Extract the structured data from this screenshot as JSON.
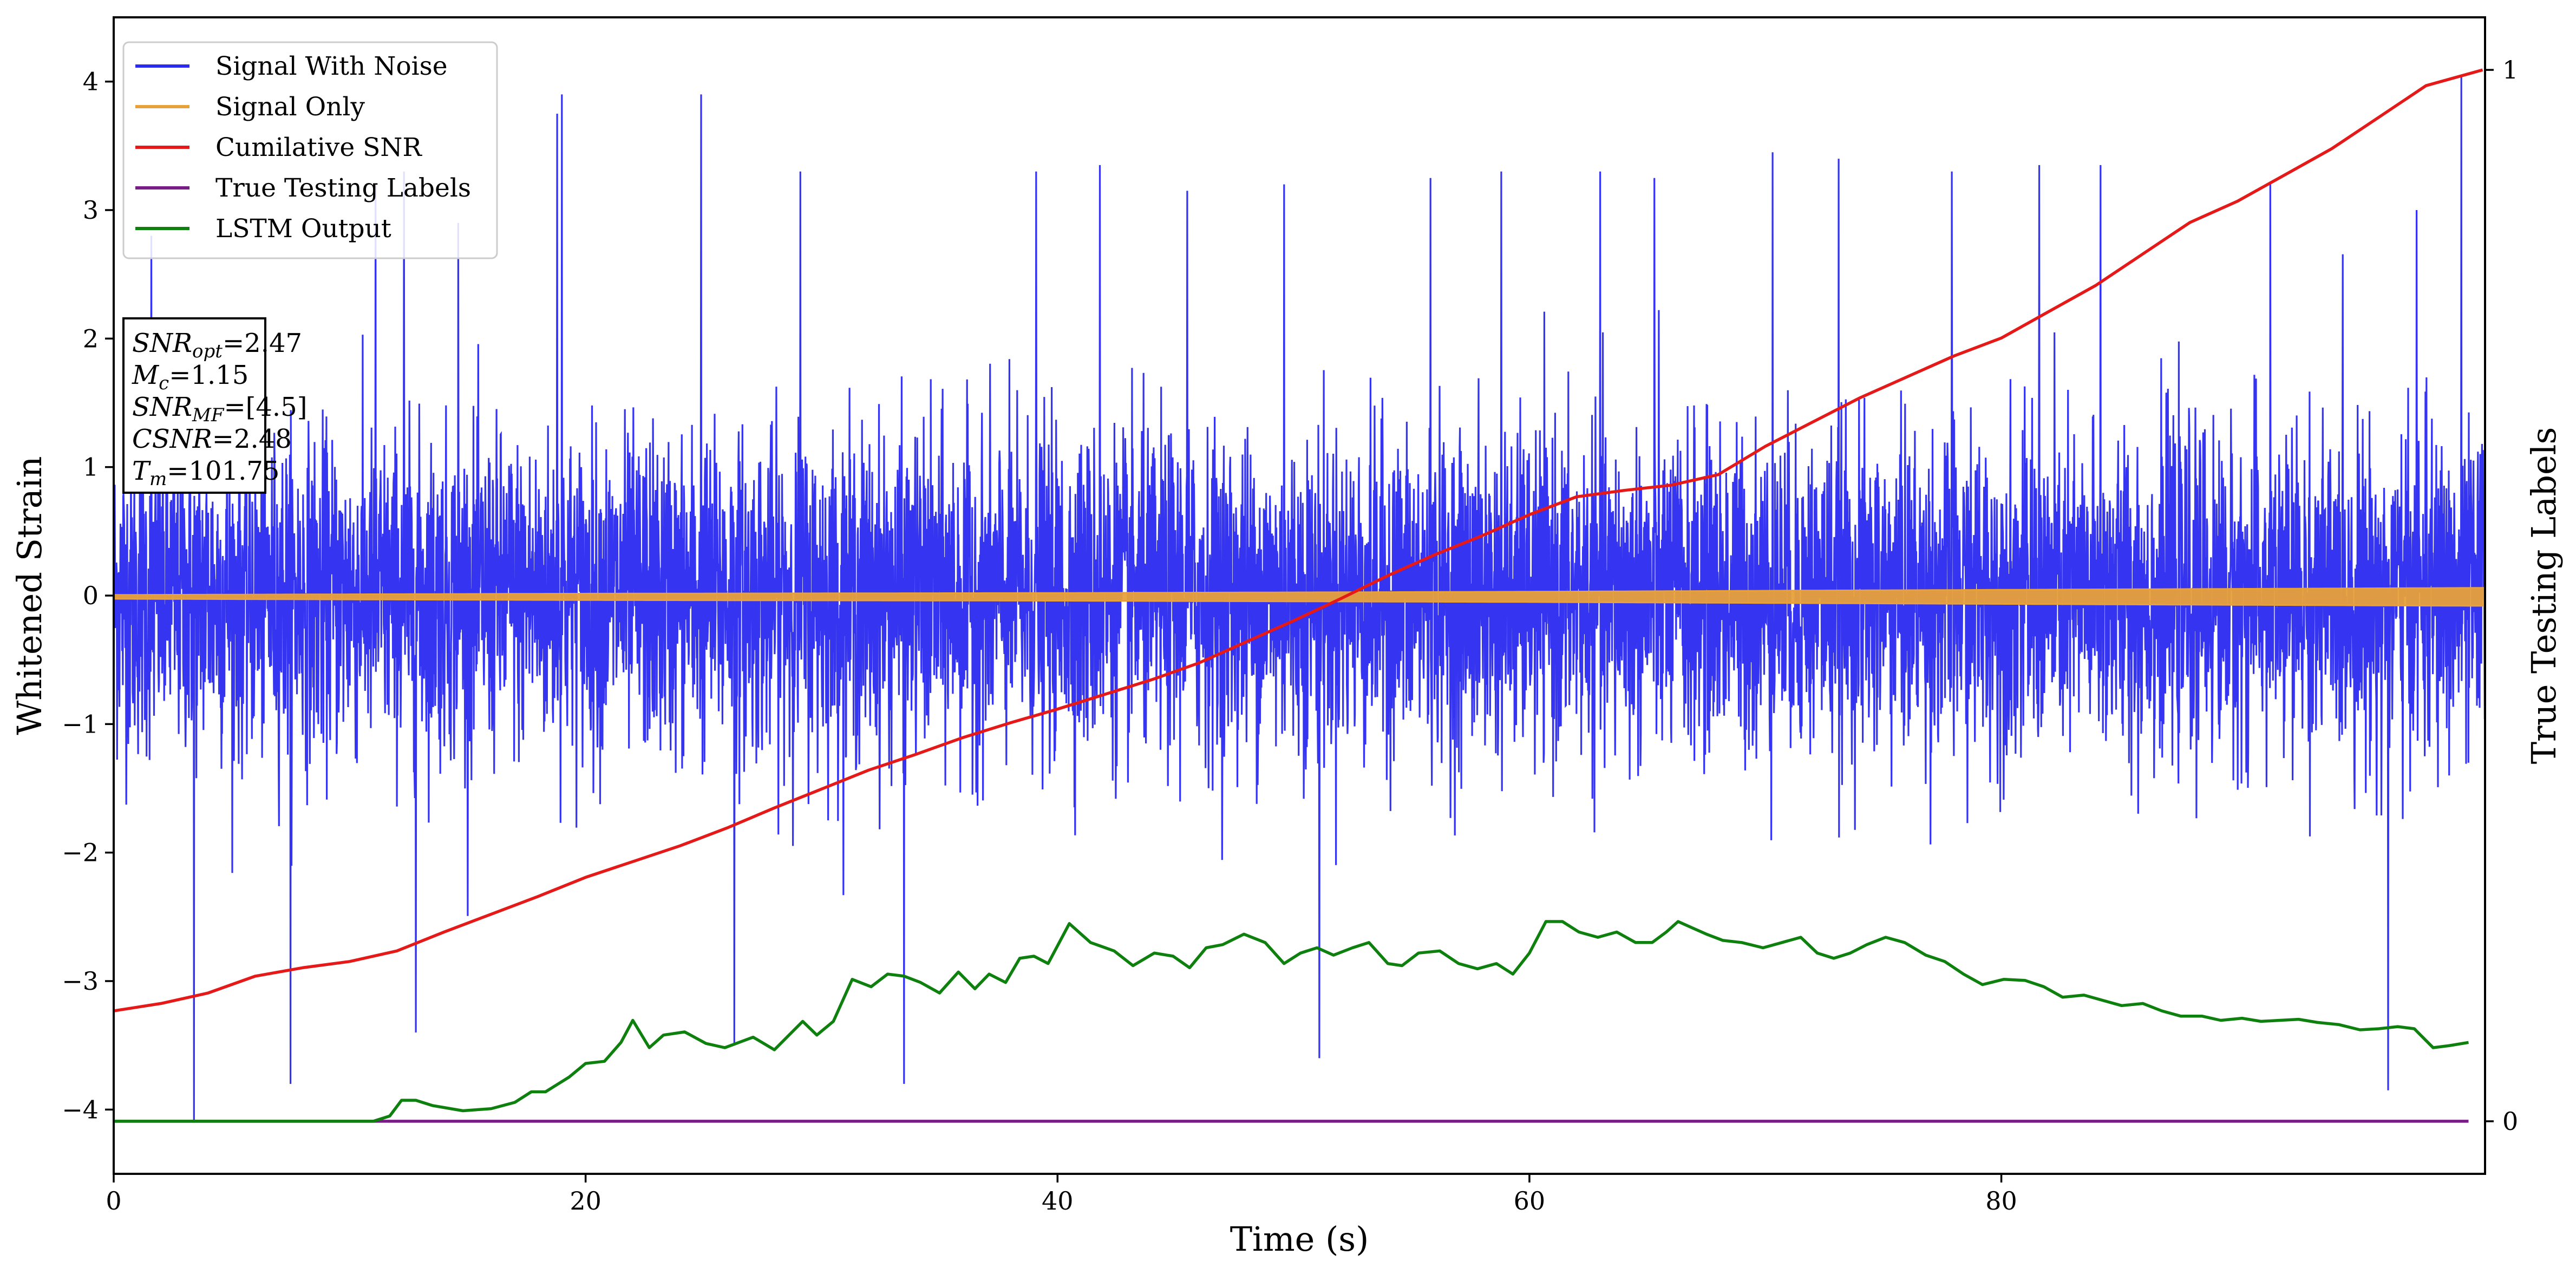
{
  "chart_data": {
    "type": "line",
    "xlabel": "Time (s)",
    "ylabel": "Whitened Strain",
    "y2label": "True Testing Labels",
    "xlim": [
      0,
      100.5
    ],
    "ylim": [
      -4.5,
      4.5
    ],
    "y2lim": [
      -0.05,
      1.05
    ],
    "xticks": [
      0,
      20,
      40,
      60,
      80
    ],
    "yticks": [
      -4,
      -3,
      -2,
      -1,
      0,
      1,
      2,
      3,
      4
    ],
    "y2ticks": [
      0,
      1
    ],
    "legend_position": "upper-left",
    "series": [
      {
        "name": "Signal With Noise",
        "axis": "left",
        "color": "#2a2af0",
        "duration": 100.5,
        "sigma": 0.62,
        "peaks_x": [
          1.6,
          3.4,
          7.5,
          11.1,
          12.3,
          12.8,
          14.6,
          18.8,
          19.0,
          24.9,
          26.3,
          29.1,
          33.5,
          39.1,
          41.8,
          45.5,
          49.6,
          51.1,
          55.8,
          58.8,
          63.0,
          65.3,
          70.3,
          73.1,
          77.9,
          81.6,
          84.2,
          91.4,
          96.4,
          97.6,
          99.5
        ],
        "peaks_y": [
          2.8,
          -4.1,
          -3.8,
          3.2,
          3.3,
          -3.4,
          2.9,
          3.75,
          3.9,
          3.9,
          -3.5,
          3.3,
          -3.8,
          3.3,
          3.35,
          3.15,
          3.2,
          -3.6,
          3.25,
          3.3,
          3.3,
          3.25,
          3.45,
          3.4,
          3.3,
          3.35,
          3.35,
          3.2,
          -3.85,
          3.0,
          4.05
        ]
      },
      {
        "name": "Signal Only",
        "axis": "left",
        "color": "#e8a13a",
        "x": [
          0,
          20,
          40,
          60,
          80,
          100.5
        ],
        "amplitude": [
          0.015,
          0.025,
          0.03,
          0.04,
          0.055,
          0.07
        ]
      },
      {
        "name": "Cumilative SNR",
        "axis": "right",
        "color": "#e61919",
        "x": [
          0,
          2,
          4,
          6,
          8,
          10,
          12,
          14,
          16,
          18,
          20,
          22,
          24,
          26,
          28,
          30,
          32,
          34,
          36,
          38,
          40,
          42,
          44,
          46,
          48,
          50,
          52,
          54,
          56,
          58,
          60,
          62,
          64,
          66,
          68,
          70,
          72,
          74,
          76,
          78,
          80,
          82,
          84,
          86,
          88,
          90,
          92,
          94,
          96,
          98,
          100.4
        ],
        "y": [
          0.105,
          0.112,
          0.122,
          0.138,
          0.146,
          0.152,
          0.162,
          0.18,
          0.197,
          0.214,
          0.232,
          0.247,
          0.262,
          0.279,
          0.298,
          0.316,
          0.334,
          0.349,
          0.365,
          0.379,
          0.392,
          0.406,
          0.42,
          0.436,
          0.456,
          0.476,
          0.497,
          0.519,
          0.539,
          0.557,
          0.577,
          0.594,
          0.6,
          0.605,
          0.615,
          0.642,
          0.665,
          0.688,
          0.708,
          0.728,
          0.745,
          0.77,
          0.795,
          0.825,
          0.855,
          0.875,
          0.9,
          0.925,
          0.955,
          0.985,
          1.0
        ]
      },
      {
        "name": "True Testing Labels",
        "axis": "right",
        "color": "#7a1c88",
        "x": [
          0,
          99.8
        ],
        "y": [
          0,
          0
        ]
      },
      {
        "name": "LSTM Output",
        "axis": "right",
        "color": "#0e800e",
        "x": [
          0,
          11,
          11.7,
          12.2,
          12.8,
          13.5,
          14.8,
          16,
          17,
          17.7,
          18.3,
          18.8,
          19.3,
          20,
          20.8,
          21.5,
          22,
          22.7,
          23.3,
          24.2,
          25.1,
          25.9,
          26.5,
          27.1,
          28,
          29.2,
          29.8,
          30.5,
          31.3,
          32.1,
          32.8,
          33.5,
          34.2,
          35,
          35.8,
          36.5,
          37.1,
          37.8,
          38.4,
          39,
          39.6,
          40.5,
          41.4,
          42.4,
          43.2,
          44.1,
          44.9,
          45.6,
          46.3,
          47,
          47.9,
          48.8,
          49.6,
          50.3,
          51,
          51.7,
          52.5,
          53.2,
          54,
          54.6,
          55.3,
          56.2,
          57,
          57.8,
          58.6,
          59.3,
          60,
          60.7,
          61.4,
          62.1,
          62.9,
          63.7,
          64.5,
          65.2,
          65.8,
          66.3,
          66.8,
          67.5,
          68.2,
          69,
          69.9,
          70.7,
          71.5,
          72.2,
          72.9,
          73.6,
          74.3,
          75.1,
          75.9,
          76.8,
          77.6,
          78.4,
          79.2,
          80.1,
          81,
          81.8,
          82.6,
          83.5,
          84.3,
          85.1,
          86,
          86.8,
          87.6,
          88.5,
          89.3,
          90.2,
          91,
          91.8,
          92.6,
          93.4,
          94.3,
          95.2,
          96,
          96.8,
          97.5,
          98.3,
          99,
          99.8
        ],
        "y": [
          0.0,
          0.0,
          0.005,
          0.02,
          0.02,
          0.015,
          0.01,
          0.012,
          0.018,
          0.028,
          0.028,
          0.035,
          0.042,
          0.055,
          0.057,
          0.075,
          0.096,
          0.07,
          0.082,
          0.085,
          0.074,
          0.07,
          0.075,
          0.08,
          0.068,
          0.095,
          0.082,
          0.095,
          0.135,
          0.128,
          0.14,
          0.138,
          0.132,
          0.122,
          0.142,
          0.126,
          0.14,
          0.132,
          0.155,
          0.157,
          0.15,
          0.188,
          0.17,
          0.162,
          0.148,
          0.16,
          0.157,
          0.146,
          0.165,
          0.168,
          0.178,
          0.17,
          0.15,
          0.16,
          0.165,
          0.158,
          0.165,
          0.17,
          0.15,
          0.148,
          0.16,
          0.162,
          0.15,
          0.145,
          0.15,
          0.14,
          0.16,
          0.19,
          0.19,
          0.18,
          0.175,
          0.18,
          0.17,
          0.17,
          0.18,
          0.19,
          0.185,
          0.178,
          0.172,
          0.17,
          0.165,
          0.17,
          0.175,
          0.16,
          0.155,
          0.16,
          0.168,
          0.175,
          0.17,
          0.158,
          0.152,
          0.14,
          0.13,
          0.135,
          0.134,
          0.128,
          0.118,
          0.12,
          0.115,
          0.11,
          0.112,
          0.105,
          0.1,
          0.1,
          0.096,
          0.098,
          0.095,
          0.096,
          0.097,
          0.094,
          0.092,
          0.087,
          0.088,
          0.09,
          0.088,
          0.07,
          0.072,
          0.075
        ]
      }
    ],
    "annotation": {
      "lines": [
        {
          "sym": "SNR",
          "sub": "opt",
          "value": "=2.47"
        },
        {
          "sym": "M",
          "sub": "c",
          "value": "=1.15"
        },
        {
          "sym": "SNR",
          "sub": "MF",
          "value": "=[4.5]"
        },
        {
          "sym": "CSNR",
          "sub": "",
          "value": "=2.48"
        },
        {
          "sym": "T",
          "sub": "m",
          "value": "=101.75"
        }
      ]
    }
  }
}
